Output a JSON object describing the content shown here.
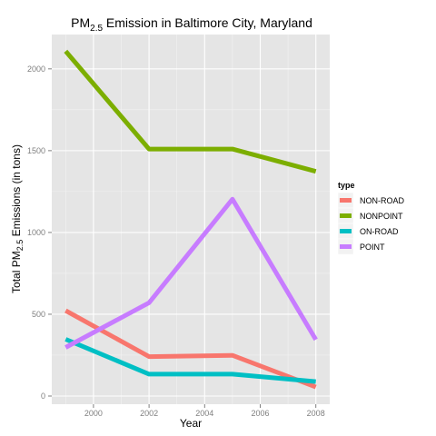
{
  "chart_data": {
    "type": "line",
    "title_main": "PM",
    "title_sub": "2.5",
    "title_rest": " Emission in Baltimore City, Maryland",
    "xlabel": "Year",
    "ylabel_pre": "Total PM",
    "ylabel_sub": "2.5",
    "ylabel_post": " Emissions (in tons)",
    "x": [
      1999,
      2002,
      2005,
      2008
    ],
    "xlim": [
      1998.5,
      2008.5
    ],
    "ylim": [
      -50,
      2210
    ],
    "x_ticks": [
      2000,
      2002,
      2004,
      2006,
      2008
    ],
    "y_ticks": [
      0,
      500,
      1000,
      1500,
      2000
    ],
    "x_tick_labels": [
      "2000",
      "2002",
      "2004",
      "2006",
      "2008"
    ],
    "y_tick_labels": [
      "0",
      "500",
      "1000",
      "1500",
      "2000"
    ],
    "legend_title": "type",
    "legend_position": "right",
    "grid": true,
    "series": [
      {
        "name": "NON-ROAD",
        "color": "#F8766D",
        "values": [
          522,
          241,
          249,
          55
        ]
      },
      {
        "name": "NONPOINT",
        "color": "#7CAE00",
        "values": [
          2108,
          1510,
          1510,
          1373
        ]
      },
      {
        "name": "ON-ROAD",
        "color": "#00BFC4",
        "values": [
          347,
          134,
          134,
          88
        ]
      },
      {
        "name": "POINT",
        "color": "#C77CFF",
        "values": [
          297,
          570,
          1203,
          345
        ]
      }
    ]
  }
}
